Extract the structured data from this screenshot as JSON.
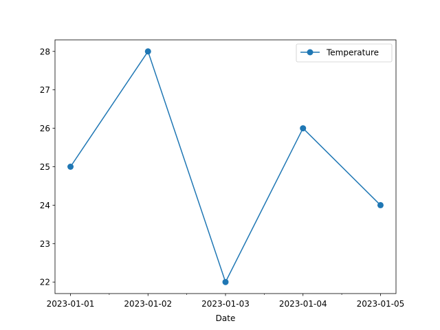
{
  "chart_data": {
    "type": "line",
    "title": "",
    "xlabel": "Date",
    "ylabel": "",
    "categories": [
      "2023-01-01",
      "2023-01-02",
      "2023-01-03",
      "2023-01-04",
      "2023-01-05"
    ],
    "series": [
      {
        "name": "Temperature",
        "values": [
          25,
          28,
          22,
          26,
          24
        ],
        "color": "#1f77b4",
        "marker": "circle"
      }
    ],
    "ylim": [
      21.7,
      28.3
    ],
    "yticks": [
      22,
      23,
      24,
      25,
      26,
      27,
      28
    ],
    "grid": false,
    "legend": {
      "placement": "top-right"
    }
  }
}
